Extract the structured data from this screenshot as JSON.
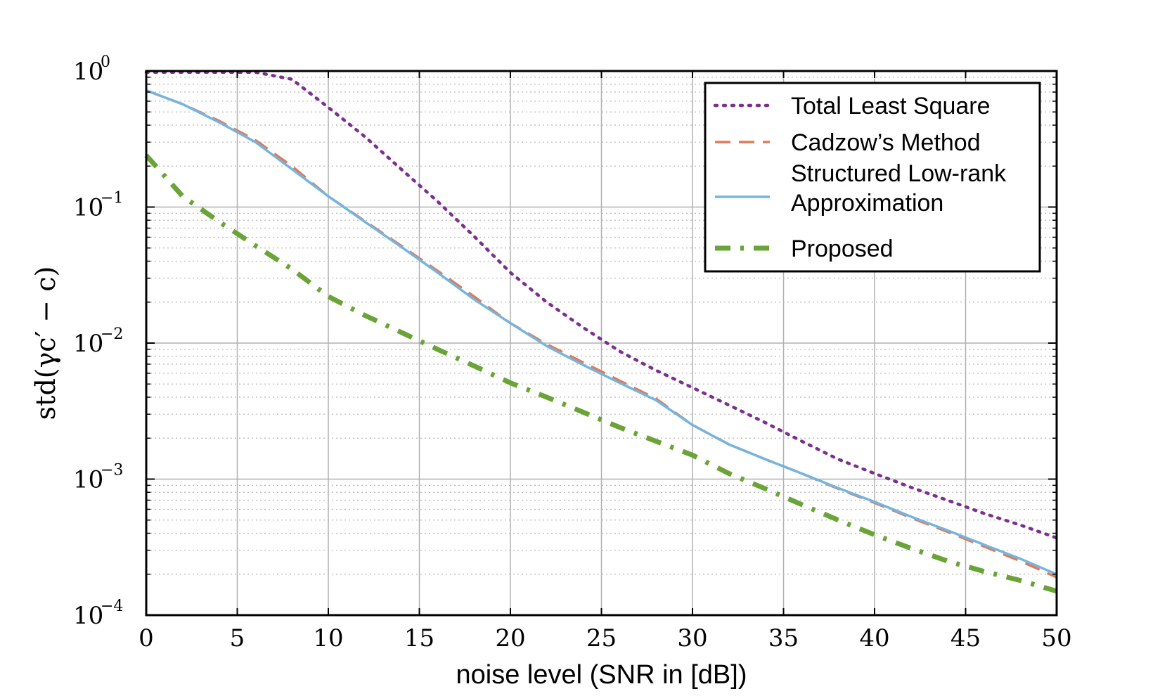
{
  "chart_data": {
    "type": "line",
    "xlabel": "noise level (SNR in [dB])",
    "ylabel": "std(γc′ − c)",
    "xlim": [
      0,
      50
    ],
    "ylim": [
      0.0001,
      1
    ],
    "yscale": "log",
    "grid": true,
    "legend_position": "top-right",
    "x_ticks": [
      "0",
      "5",
      "10",
      "15",
      "20",
      "25",
      "30",
      "35",
      "40",
      "45",
      "50"
    ],
    "y_ticks": [
      {
        "base": "10",
        "exp": "0"
      },
      {
        "base": "10",
        "exp": "−1"
      },
      {
        "base": "10",
        "exp": "−2"
      },
      {
        "base": "10",
        "exp": "−3"
      },
      {
        "base": "10",
        "exp": "−4"
      }
    ],
    "x": [
      0,
      2,
      4,
      6,
      8,
      10,
      12,
      14,
      16,
      18,
      20,
      22,
      24,
      26,
      28,
      30,
      32,
      34,
      36,
      38,
      40,
      42,
      44,
      46,
      48,
      50
    ],
    "series": [
      {
        "name": "Total Least Square",
        "style": "dotted",
        "color": "#7b2f8e",
        "values": [
          0.98,
          0.98,
          0.98,
          0.98,
          0.87,
          0.54,
          0.33,
          0.19,
          0.11,
          0.061,
          0.033,
          0.02,
          0.013,
          0.0087,
          0.0063,
          0.0047,
          0.0035,
          0.0026,
          0.0019,
          0.0014,
          0.0011,
          0.00087,
          0.0007,
          0.00056,
          0.00046,
          0.00037
        ]
      },
      {
        "name": "Cadzow’s Method",
        "style": "dashed",
        "color": "#e07a58",
        "values": [
          0.72,
          0.57,
          0.43,
          0.31,
          0.2,
          0.12,
          0.079,
          0.052,
          0.034,
          0.022,
          0.014,
          0.0098,
          0.0072,
          0.0053,
          0.0039,
          0.0025,
          0.0018,
          0.0014,
          0.0011,
          0.00085,
          0.00067,
          0.00052,
          0.00041,
          0.00032,
          0.00025,
          0.00019
        ]
      },
      {
        "name": "Structured Low-rank Approximation",
        "label_lines": [
          "Structured Low-rank",
          "Approximation"
        ],
        "style": "solid",
        "color": "#74b4df",
        "values": [
          0.72,
          0.57,
          0.42,
          0.3,
          0.19,
          0.12,
          0.078,
          0.051,
          0.033,
          0.021,
          0.014,
          0.0095,
          0.0069,
          0.0051,
          0.0038,
          0.0025,
          0.0018,
          0.0014,
          0.0011,
          0.00086,
          0.00068,
          0.00053,
          0.00042,
          0.00033,
          0.00026,
          0.0002
        ]
      },
      {
        "name": "Proposed",
        "style": "dashdot",
        "color": "#6aa338",
        "values": [
          0.24,
          0.12,
          0.078,
          0.052,
          0.035,
          0.022,
          0.016,
          0.012,
          0.009,
          0.0068,
          0.0051,
          0.004,
          0.0031,
          0.0024,
          0.0019,
          0.0015,
          0.0011,
          0.00085,
          0.00065,
          0.0005,
          0.00039,
          0.00031,
          0.00025,
          0.00021,
          0.00018,
          0.00015
        ]
      }
    ]
  }
}
